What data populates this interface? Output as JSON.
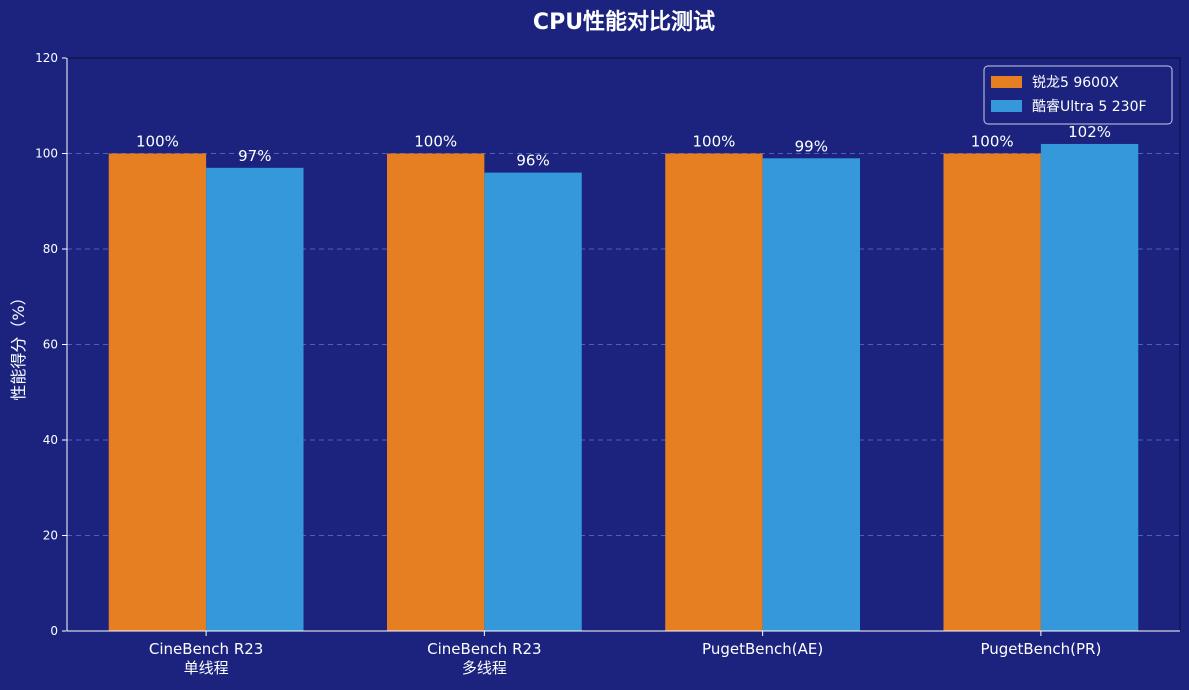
{
  "chart_data": {
    "type": "bar",
    "title": "CPU性能对比测试",
    "ylabel": "性能得分（%）",
    "xlabel": "",
    "ylim": [
      0,
      120
    ],
    "yticks": [
      0,
      20,
      40,
      60,
      80,
      100,
      120
    ],
    "grid": true,
    "legend_position": "top-right",
    "categories": [
      [
        "CineBench R23",
        "单线程"
      ],
      [
        "CineBench R23",
        "多线程"
      ],
      [
        "PugetBench(AE)"
      ],
      [
        "PugetBench(PR)"
      ]
    ],
    "series": [
      {
        "name": "锐龙5 9600X",
        "color": "#e67e22",
        "values": [
          100,
          100,
          100,
          100
        ],
        "labels": [
          "100%",
          "100%",
          "100%",
          "100%"
        ]
      },
      {
        "name": "酷睿Ultra 5 230F",
        "color": "#3498db",
        "values": [
          97,
          96,
          99,
          102
        ],
        "labels": [
          "97%",
          "96%",
          "99%",
          "102%"
        ]
      }
    ],
    "colors": {
      "background": "#1b237f",
      "grid": "#5a6fd0",
      "text": "#ffffff"
    }
  }
}
